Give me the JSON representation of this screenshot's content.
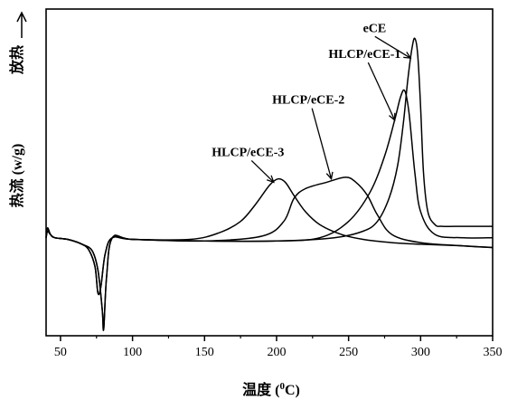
{
  "chart_data": {
    "type": "line",
    "xlabel": "温度 (°C)",
    "xlabel_parts": {
      "prefix": "温度 (",
      "sup": "0",
      "suffix": "C)"
    },
    "ylabel": "热流 (w/g)",
    "exo_label": "放热",
    "xlim": [
      40,
      350
    ],
    "ylim": [
      0,
      100
    ],
    "xticks": [
      50,
      100,
      150,
      200,
      250,
      300,
      350
    ],
    "y_tick_labels_shown": false,
    "grid": false,
    "series": [
      {
        "name": "eCE",
        "x": [
          40,
          41,
          43,
          46,
          55,
          65,
          72,
          76,
          79,
          80,
          82,
          86,
          100,
          150,
          200,
          240,
          260,
          270,
          278,
          284,
          288,
          291,
          294,
          296,
          298,
          300,
          302,
          305,
          310,
          315,
          330,
          350
        ],
        "y": [
          30,
          33,
          31,
          30,
          29.5,
          28,
          26,
          20,
          8,
          2,
          18,
          30,
          29.5,
          29,
          29,
          30,
          32,
          35,
          42,
          52,
          65,
          78,
          88,
          91,
          86,
          70,
          50,
          38,
          34,
          33.5,
          33.5,
          33.5
        ]
      },
      {
        "name": "HLCP/eCE-1",
        "x": [
          40,
          41,
          43,
          46,
          55,
          65,
          72,
          76,
          79,
          80,
          82,
          86,
          100,
          150,
          200,
          230,
          250,
          265,
          275,
          282,
          286,
          289,
          292,
          296,
          300,
          310,
          330,
          350
        ],
        "y": [
          30,
          33,
          31,
          30,
          29.5,
          28,
          26,
          20,
          8,
          2,
          18,
          30,
          29.5,
          29,
          29,
          30,
          35,
          44,
          55,
          66,
          73,
          75,
          68,
          50,
          38,
          31,
          30,
          30
        ]
      },
      {
        "name": "HLCP/eCE-2",
        "x": [
          40,
          41,
          43,
          46,
          55,
          65,
          70,
          74,
          76,
          78,
          81,
          86,
          100,
          150,
          190,
          205,
          212,
          220,
          235,
          248,
          255,
          263,
          270,
          280,
          300,
          330,
          350
        ],
        "y": [
          30,
          32,
          31,
          30,
          29.5,
          28,
          26,
          21,
          13,
          15,
          25,
          30,
          29.5,
          29,
          30.5,
          35,
          42,
          45,
          47,
          48.5,
          47,
          43,
          37,
          31,
          28.5,
          27.5,
          27
        ]
      },
      {
        "name": "HLCP/eCE-3",
        "x": [
          40,
          41,
          43,
          46,
          55,
          65,
          70,
          74,
          76,
          78,
          81,
          86,
          100,
          140,
          160,
          175,
          185,
          195,
          201,
          206,
          212,
          220,
          230,
          245,
          260,
          280,
          300,
          330,
          350
        ],
        "y": [
          30,
          32,
          31,
          30,
          29.5,
          28,
          26,
          21,
          13,
          15,
          25,
          30,
          29.5,
          29.5,
          31.5,
          35,
          40,
          46,
          48,
          47,
          43,
          38,
          34,
          31,
          29.5,
          28.5,
          28,
          27.5,
          27
        ]
      }
    ],
    "annotations": [
      {
        "text": "eCE",
        "series": "eCE",
        "label_x": 260,
        "label_y": 93,
        "point_x": 293,
        "point_y": 85
      },
      {
        "text": "HLCP/eCE-1",
        "series": "HLCP/eCE-1",
        "label_x": 236,
        "label_y": 85,
        "point_x": 282,
        "point_y": 66
      },
      {
        "text": "HLCP/eCE-2",
        "series": "HLCP/eCE-2",
        "label_x": 197,
        "label_y": 71,
        "point_x": 238,
        "point_y": 48
      },
      {
        "text": "HLCP/eCE-3",
        "series": "HLCP/eCE-3",
        "label_x": 155,
        "label_y": 55,
        "point_x": 198,
        "point_y": 47
      }
    ]
  }
}
